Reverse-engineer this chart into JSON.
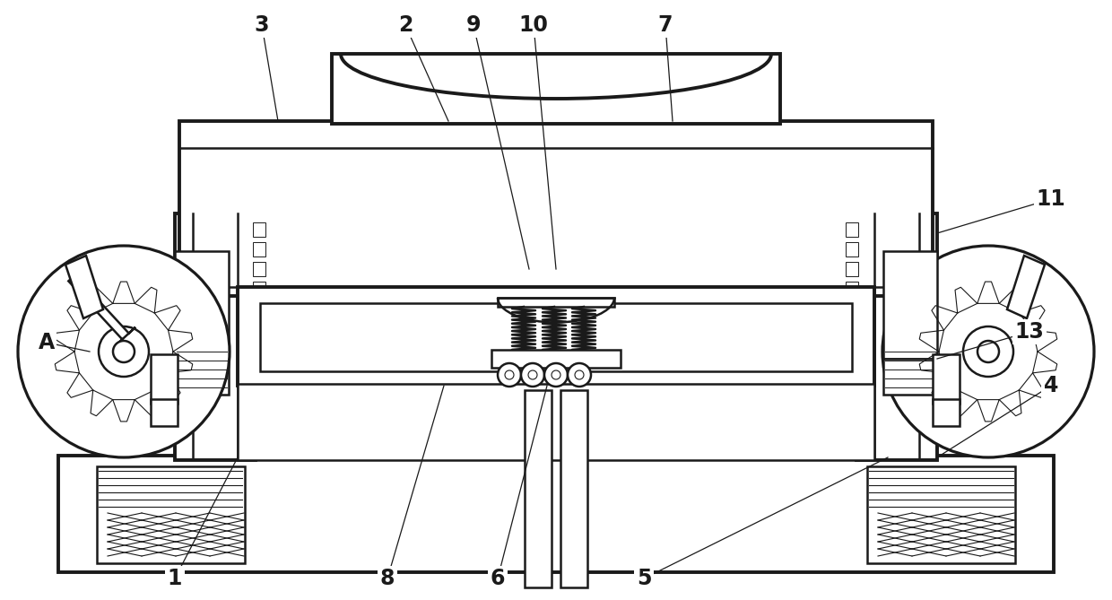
{
  "bg": "#ffffff",
  "lc": "#1a1a1a",
  "lw": 1.8,
  "tlw": 2.8,
  "label_fs": 17,
  "label_fw": "bold",
  "labels_top": [
    [
      "3",
      290,
      30
    ],
    [
      "2",
      450,
      30
    ],
    [
      "9",
      530,
      30
    ],
    [
      "10",
      592,
      30
    ],
    [
      "7",
      740,
      30
    ]
  ],
  "labels_bot": [
    [
      "1",
      195,
      640
    ],
    [
      "8",
      435,
      640
    ],
    [
      "6",
      555,
      640
    ],
    [
      "5",
      720,
      640
    ]
  ],
  "labels_side": [
    [
      "11",
      1165,
      225
    ],
    [
      "13",
      1145,
      370
    ],
    [
      "4",
      1165,
      430
    ],
    [
      "A",
      55,
      380
    ]
  ]
}
